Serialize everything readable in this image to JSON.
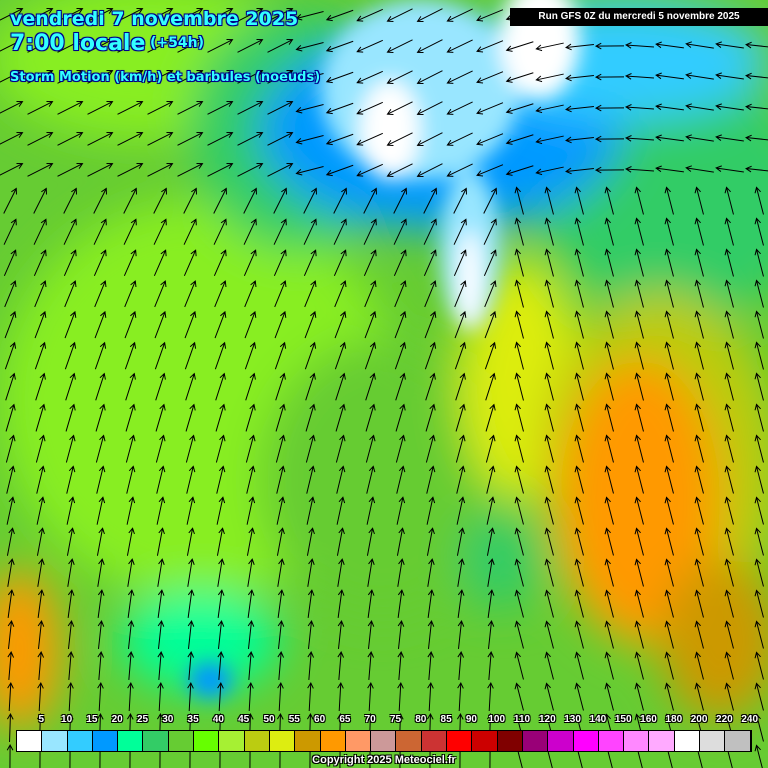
{
  "header": {
    "date": "vendredi 7 novembre 2025",
    "time": "7:00 locale",
    "lead": "(+54h)",
    "parameter": "Storm Motion (km/h) et barbules (noeuds)",
    "run": "Run GFS 0Z du mercredi 5 novembre 2025"
  },
  "legend": {
    "labels": [
      "5",
      "10",
      "15",
      "20",
      "25",
      "30",
      "35",
      "40",
      "45",
      "50",
      "55",
      "60",
      "65",
      "70",
      "75",
      "80",
      "85",
      "90",
      "100",
      "110",
      "120",
      "130",
      "140",
      "150",
      "160",
      "180",
      "200",
      "220",
      "240"
    ],
    "colors": [
      "#ffffff",
      "#99e6ff",
      "#33ccff",
      "#0099ff",
      "#00ff99",
      "#33cc66",
      "#66cc33",
      "#66ff00",
      "#a6f033",
      "#bbcc11",
      "#dded11",
      "#cc9900",
      "#ff9900",
      "#ff9966",
      "#cc9999",
      "#cc6633",
      "#cc3333",
      "#ff0000",
      "#cc0000",
      "#800000",
      "#990077",
      "#cc00cc",
      "#ff00ff",
      "#ff44ff",
      "#ff88ff",
      "#ffaaff",
      "#ffffff",
      "#dddddd",
      "#c0c0c0"
    ]
  },
  "copyright": "Copyright 2025 Meteociel.fr"
}
